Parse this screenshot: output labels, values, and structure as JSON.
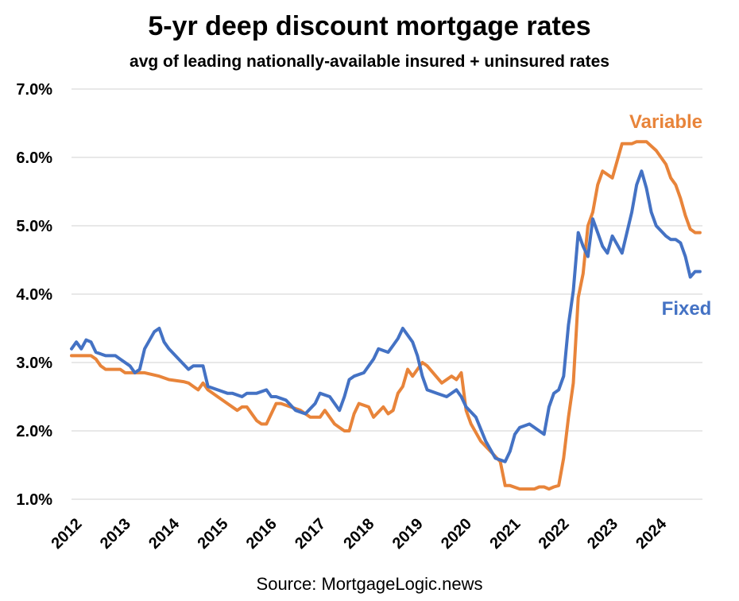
{
  "chart_data": {
    "type": "line",
    "title": "5-yr deep discount mortgage rates",
    "subtitle": "avg of leading nationally-available insured + uninsured rates",
    "source": "Source: MortgageLogic.news",
    "xlabel": "",
    "ylabel": "",
    "x_ticks": [
      "2012",
      "2013",
      "2014",
      "2015",
      "2016",
      "2017",
      "2018",
      "2019",
      "2020",
      "2021",
      "2022",
      "2023",
      "2024"
    ],
    "y_ticks": [
      "1.0%",
      "2.0%",
      "3.0%",
      "4.0%",
      "5.0%",
      "6.0%",
      "7.0%"
    ],
    "ylim": [
      1.0,
      7.0
    ],
    "xlim": [
      2012.0,
      2024.95
    ],
    "grid": true,
    "legend": "inline labels at right",
    "series": [
      {
        "name": "Variable",
        "color": "#E8843A",
        "x": [
          2012.0,
          2012.4,
          2012.5,
          2012.6,
          2012.7,
          2013.0,
          2013.1,
          2013.5,
          2013.8,
          2014.0,
          2014.3,
          2014.4,
          2014.5,
          2014.6,
          2014.7,
          2014.8,
          2015.0,
          2015.2,
          2015.4,
          2015.5,
          2015.6,
          2015.8,
          2015.9,
          2016.0,
          2016.2,
          2016.3,
          2016.5,
          2016.7,
          2016.9,
          2017.1,
          2017.2,
          2017.4,
          2017.5,
          2017.6,
          2017.7,
          2017.8,
          2017.9,
          2018.1,
          2018.2,
          2018.4,
          2018.5,
          2018.6,
          2018.7,
          2018.8,
          2018.9,
          2019.0,
          2019.2,
          2019.3,
          2019.6,
          2019.8,
          2019.9,
          2020.0,
          2020.1,
          2020.2,
          2020.4,
          2020.6,
          2020.8,
          2020.9,
          2021.0,
          2021.2,
          2021.5,
          2021.6,
          2021.7,
          2021.8,
          2021.9,
          2022.0,
          2022.1,
          2022.2,
          2022.3,
          2022.4,
          2022.5,
          2022.6,
          2022.7,
          2022.8,
          2022.9,
          2023.0,
          2023.1,
          2023.3,
          2023.4,
          2023.5,
          2023.6,
          2023.8,
          2024.0,
          2024.2,
          2024.3,
          2024.4,
          2024.5,
          2024.6,
          2024.7,
          2024.8,
          2024.9
        ],
        "values": [
          3.1,
          3.1,
          3.05,
          2.95,
          2.9,
          2.9,
          2.85,
          2.85,
          2.8,
          2.75,
          2.72,
          2.7,
          2.65,
          2.6,
          2.7,
          2.6,
          2.5,
          2.4,
          2.3,
          2.35,
          2.35,
          2.15,
          2.1,
          2.1,
          2.4,
          2.4,
          2.35,
          2.3,
          2.2,
          2.2,
          2.3,
          2.1,
          2.05,
          2.0,
          2.0,
          2.25,
          2.4,
          2.35,
          2.2,
          2.35,
          2.25,
          2.3,
          2.55,
          2.65,
          2.9,
          2.8,
          3.0,
          2.95,
          2.7,
          2.8,
          2.75,
          2.85,
          2.3,
          2.1,
          1.85,
          1.7,
          1.55,
          1.2,
          1.2,
          1.15,
          1.15,
          1.18,
          1.18,
          1.15,
          1.18,
          1.2,
          1.6,
          2.2,
          2.7,
          3.95,
          4.3,
          5.0,
          5.2,
          5.6,
          5.8,
          5.75,
          5.7,
          6.2,
          6.2,
          6.2,
          6.23,
          6.23,
          6.1,
          5.9,
          5.7,
          5.6,
          5.4,
          5.15,
          4.95,
          4.9,
          4.9
        ]
      },
      {
        "name": "Fixed",
        "color": "#4472C4",
        "x": [
          2012.0,
          2012.1,
          2012.2,
          2012.3,
          2012.4,
          2012.5,
          2012.7,
          2012.9,
          2013.0,
          2013.2,
          2013.3,
          2013.4,
          2013.5,
          2013.7,
          2013.8,
          2013.9,
          2014.0,
          2014.2,
          2014.4,
          2014.5,
          2014.7,
          2014.8,
          2015.0,
          2015.2,
          2015.3,
          2015.5,
          2015.6,
          2015.8,
          2016.0,
          2016.1,
          2016.2,
          2016.4,
          2016.6,
          2016.8,
          2017.0,
          2017.1,
          2017.3,
          2017.5,
          2017.6,
          2017.7,
          2017.8,
          2018.0,
          2018.2,
          2018.3,
          2018.5,
          2018.6,
          2018.7,
          2018.8,
          2019.0,
          2019.1,
          2019.2,
          2019.3,
          2019.5,
          2019.7,
          2019.9,
          2020.0,
          2020.1,
          2020.3,
          2020.5,
          2020.7,
          2020.9,
          2021.0,
          2021.1,
          2021.2,
          2021.4,
          2021.6,
          2021.7,
          2021.8,
          2021.9,
          2022.0,
          2022.1,
          2022.2,
          2022.3,
          2022.4,
          2022.5,
          2022.6,
          2022.7,
          2022.9,
          2023.0,
          2023.1,
          2023.3,
          2023.5,
          2023.6,
          2023.7,
          2023.8,
          2023.9,
          2024.0,
          2024.2,
          2024.3,
          2024.4,
          2024.5,
          2024.6,
          2024.7,
          2024.8,
          2024.9
        ],
        "values": [
          3.2,
          3.3,
          3.2,
          3.33,
          3.3,
          3.15,
          3.1,
          3.1,
          3.05,
          2.95,
          2.85,
          2.9,
          3.2,
          3.45,
          3.5,
          3.3,
          3.2,
          3.05,
          2.9,
          2.95,
          2.95,
          2.65,
          2.6,
          2.55,
          2.55,
          2.5,
          2.55,
          2.55,
          2.6,
          2.5,
          2.5,
          2.45,
          2.3,
          2.25,
          2.4,
          2.55,
          2.5,
          2.3,
          2.5,
          2.75,
          2.8,
          2.85,
          3.05,
          3.2,
          3.15,
          3.25,
          3.35,
          3.5,
          3.3,
          3.1,
          2.8,
          2.6,
          2.55,
          2.5,
          2.6,
          2.5,
          2.35,
          2.2,
          1.85,
          1.6,
          1.55,
          1.7,
          1.95,
          2.05,
          2.1,
          2.0,
          1.95,
          2.35,
          2.55,
          2.6,
          2.8,
          3.55,
          4.05,
          4.9,
          4.7,
          4.55,
          5.1,
          4.7,
          4.6,
          4.85,
          4.6,
          5.2,
          5.6,
          5.8,
          5.55,
          5.2,
          5.0,
          4.85,
          4.8,
          4.8,
          4.75,
          4.55,
          4.25,
          4.33,
          4.33
        ]
      }
    ]
  }
}
